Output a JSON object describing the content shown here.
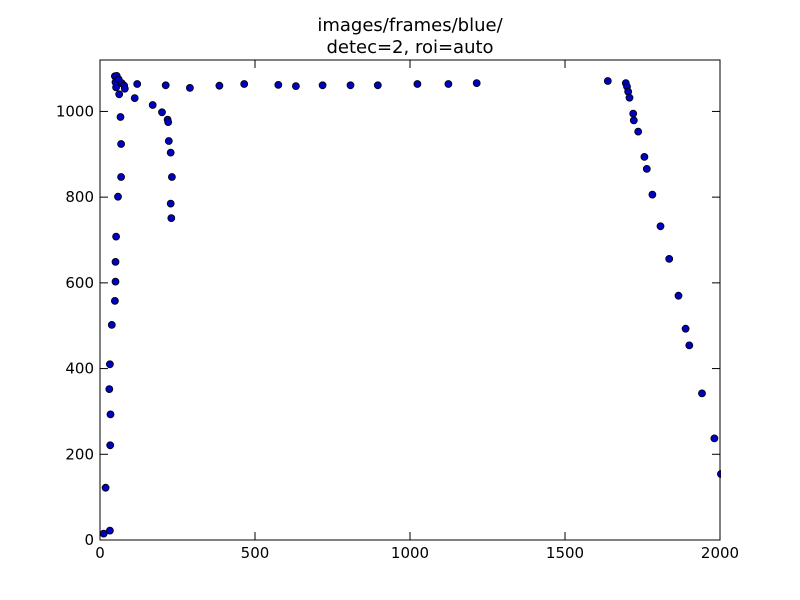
{
  "chart_data": {
    "type": "scatter",
    "title": "images/frames/blue/",
    "subtitle": "detec=2, roi=auto",
    "xlabel": "",
    "ylabel": "",
    "xlim": [
      0,
      2000
    ],
    "ylim": [
      0,
      1120
    ],
    "x_ticks": [
      0,
      500,
      1000,
      1500,
      2000
    ],
    "y_ticks": [
      0,
      200,
      400,
      600,
      800,
      1000
    ],
    "grid": false,
    "marker_color": "#0000bf",
    "series": [
      {
        "points": [
          [
            12,
            15
          ],
          [
            18,
            122
          ],
          [
            32,
            22
          ],
          [
            33,
            221
          ],
          [
            34,
            293
          ],
          [
            30,
            352
          ],
          [
            32,
            410
          ],
          [
            38,
            502
          ],
          [
            48,
            558
          ],
          [
            50,
            603
          ],
          [
            50,
            649
          ],
          [
            52,
            708
          ],
          [
            58,
            801
          ],
          [
            68,
            847
          ],
          [
            68,
            924
          ],
          [
            66,
            987
          ],
          [
            62,
            1040
          ],
          [
            52,
            1056
          ],
          [
            50,
            1068
          ],
          [
            48,
            1082
          ],
          [
            54,
            1083
          ],
          [
            60,
            1075
          ],
          [
            70,
            1066
          ],
          [
            78,
            1060
          ],
          [
            80,
            1053
          ],
          [
            112,
            1031
          ],
          [
            120,
            1064
          ],
          [
            170,
            1015
          ],
          [
            200,
            998
          ],
          [
            218,
            981
          ],
          [
            220,
            975
          ],
          [
            222,
            931
          ],
          [
            228,
            904
          ],
          [
            232,
            847
          ],
          [
            228,
            785
          ],
          [
            230,
            751
          ],
          [
            212,
            1061
          ],
          [
            290,
            1055
          ],
          [
            385,
            1060
          ],
          [
            465,
            1064
          ],
          [
            575,
            1062
          ],
          [
            632,
            1059
          ],
          [
            718,
            1061
          ],
          [
            808,
            1061
          ],
          [
            896,
            1061
          ],
          [
            1024,
            1064
          ],
          [
            1124,
            1064
          ],
          [
            1215,
            1066
          ],
          [
            1638,
            1071
          ],
          [
            1696,
            1066
          ],
          [
            1700,
            1058
          ],
          [
            1704,
            1046
          ],
          [
            1708,
            1032
          ],
          [
            1720,
            995
          ],
          [
            1722,
            979
          ],
          [
            1736,
            953
          ],
          [
            1756,
            894
          ],
          [
            1764,
            866
          ],
          [
            1782,
            806
          ],
          [
            1808,
            732
          ],
          [
            1836,
            656
          ],
          [
            1866,
            570
          ],
          [
            1889,
            493
          ],
          [
            1901,
            454
          ],
          [
            1942,
            342
          ],
          [
            1982,
            237
          ],
          [
            2003,
            154
          ]
        ]
      }
    ]
  }
}
